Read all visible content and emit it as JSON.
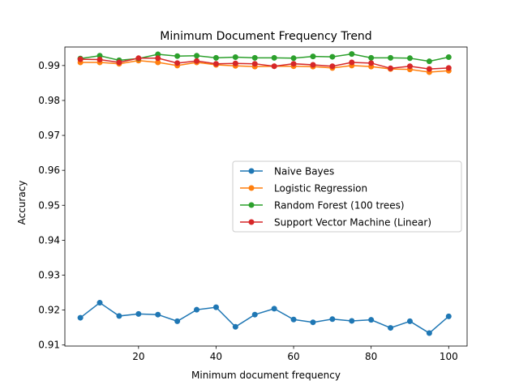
{
  "chart_data": {
    "type": "line",
    "title": "Minimum Document Frequency Trend",
    "xlabel": "Minimum document frequency",
    "ylabel": "Accuracy",
    "xlim": [
      1,
      104.75
    ],
    "ylim": [
      0.9097,
      0.9953
    ],
    "xticks": [
      20,
      40,
      60,
      80,
      100
    ],
    "yticks": [
      0.91,
      0.92,
      0.93,
      0.94,
      0.95,
      0.96,
      0.97,
      0.98,
      0.99
    ],
    "ytick_labels": [
      "0.91",
      "0.92",
      "0.93",
      "0.94",
      "0.95",
      "0.96",
      "0.97",
      "0.98",
      "0.99"
    ],
    "grid": false,
    "legend_position": "center-right",
    "x": [
      5,
      10,
      15,
      20,
      25,
      30,
      35,
      40,
      45,
      50,
      55,
      60,
      65,
      70,
      75,
      80,
      85,
      90,
      95,
      100
    ],
    "series": [
      {
        "name": "Naive Bayes",
        "color": "#1f77b4",
        "values": [
          0.9178,
          0.9221,
          0.9183,
          0.9189,
          0.9187,
          0.9168,
          0.9201,
          0.9208,
          0.9152,
          0.9187,
          0.9204,
          0.9173,
          0.9165,
          0.9174,
          0.9169,
          0.9172,
          0.9149,
          0.9168,
          0.9134,
          0.9182
        ]
      },
      {
        "name": "Logistic Regression",
        "color": "#ff7f0e",
        "values": [
          0.9909,
          0.9909,
          0.9905,
          0.9914,
          0.9909,
          0.99,
          0.9909,
          0.9902,
          0.9899,
          0.9897,
          0.9898,
          0.9898,
          0.9897,
          0.9893,
          0.99,
          0.9897,
          0.989,
          0.9889,
          0.9881,
          0.9885
        ]
      },
      {
        "name": "Random Forest (100 trees)",
        "color": "#2ca02c",
        "values": [
          0.992,
          0.9928,
          0.9915,
          0.992,
          0.9932,
          0.9927,
          0.9928,
          0.9922,
          0.9924,
          0.9922,
          0.9922,
          0.9921,
          0.9926,
          0.9925,
          0.9933,
          0.9922,
          0.9922,
          0.9921,
          0.9912,
          0.9924
        ]
      },
      {
        "name": "Support Vector Machine (Linear)",
        "color": "#d62728",
        "values": [
          0.9918,
          0.9917,
          0.9909,
          0.9921,
          0.9921,
          0.9907,
          0.9913,
          0.9905,
          0.9906,
          0.9905,
          0.9898,
          0.9905,
          0.9902,
          0.9898,
          0.9909,
          0.9907,
          0.9892,
          0.9898,
          0.989,
          0.9893
        ]
      }
    ]
  }
}
